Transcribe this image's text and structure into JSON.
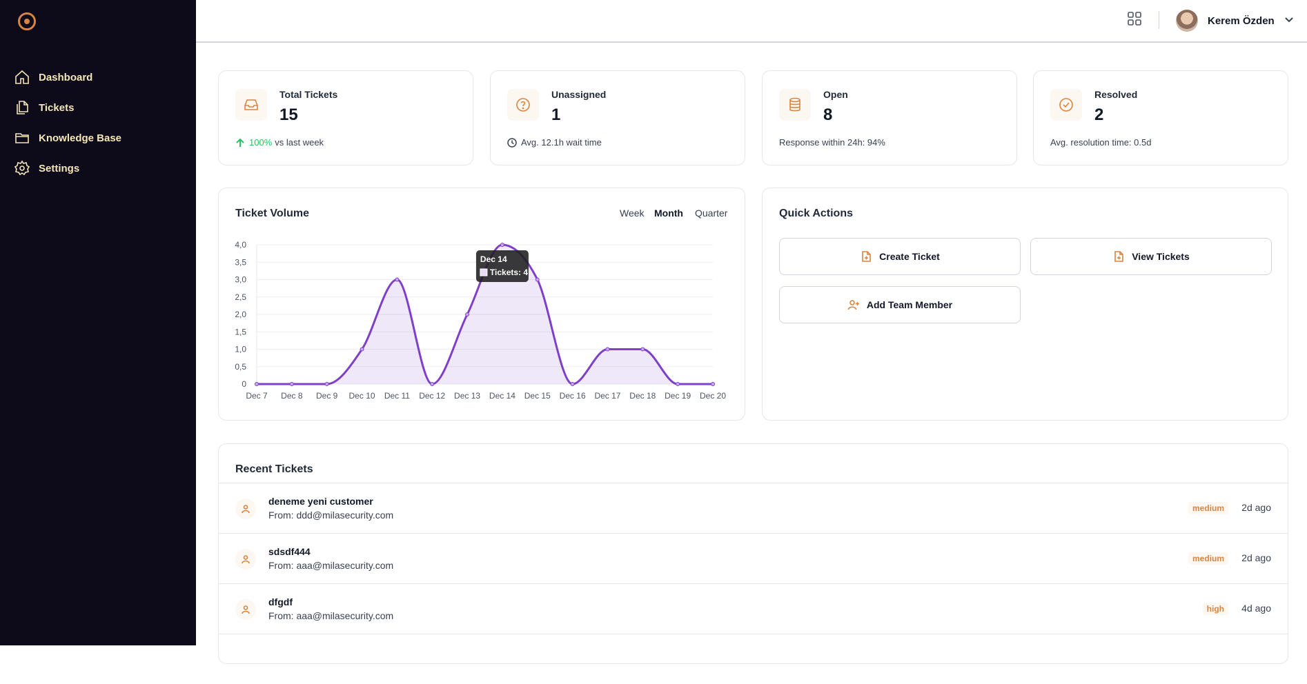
{
  "sidebar": {
    "items": [
      {
        "label": "Dashboard",
        "icon": "home-icon"
      },
      {
        "label": "Tickets",
        "icon": "files-icon"
      },
      {
        "label": "Knowledge Base",
        "icon": "folder-icon"
      },
      {
        "label": "Settings",
        "icon": "gear-icon"
      }
    ]
  },
  "header": {
    "user_name": "Kerem Özden"
  },
  "stats": [
    {
      "label": "Total Tickets",
      "value": "15",
      "foot_highlight": "100%",
      "foot": "vs last week"
    },
    {
      "label": "Unassigned",
      "value": "1",
      "foot": "Avg. 12.1h wait time"
    },
    {
      "label": "Open",
      "value": "8",
      "foot": "Response within 24h: 94%"
    },
    {
      "label": "Resolved",
      "value": "2",
      "foot": "Avg. resolution time: 0.5d"
    }
  ],
  "volume": {
    "title": "Ticket Volume",
    "periods": [
      "Week",
      "Month",
      "Quarter"
    ],
    "active_period": "Month"
  },
  "chart_data": {
    "type": "area",
    "categories": [
      "Dec 7",
      "Dec 8",
      "Dec 9",
      "Dec 10",
      "Dec 11",
      "Dec 12",
      "Dec 13",
      "Dec 14",
      "Dec 15",
      "Dec 16",
      "Dec 17",
      "Dec 18",
      "Dec 19",
      "Dec 20"
    ],
    "series": [
      {
        "name": "Tickets",
        "values": [
          0,
          0,
          0,
          1,
          3,
          0,
          2,
          4,
          3,
          0,
          1,
          1,
          0,
          0
        ]
      }
    ],
    "yticks": [
      "0",
      "0,5",
      "1,0",
      "1,5",
      "2,0",
      "2,5",
      "3,0",
      "3,5",
      "4,0"
    ],
    "ylim": [
      0,
      4
    ],
    "tooltip": {
      "title": "Dec 14",
      "text": "Tickets: 4"
    },
    "color": "#7e3fc9"
  },
  "quick_actions": {
    "title": "Quick Actions",
    "buttons": [
      "Create Ticket",
      "View Tickets",
      "Add Team Member"
    ]
  },
  "recent": {
    "title": "Recent Tickets",
    "rows": [
      {
        "title": "deneme yeni customer",
        "from": "From: ddd@milasecurity.com",
        "priority": "medium",
        "time": "2d ago"
      },
      {
        "title": "sdsdf444",
        "from": "From: aaa@milasecurity.com",
        "priority": "medium",
        "time": "2d ago"
      },
      {
        "title": "dfgdf",
        "from": "From: aaa@milasecurity.com",
        "priority": "high",
        "time": "4d ago"
      }
    ]
  }
}
